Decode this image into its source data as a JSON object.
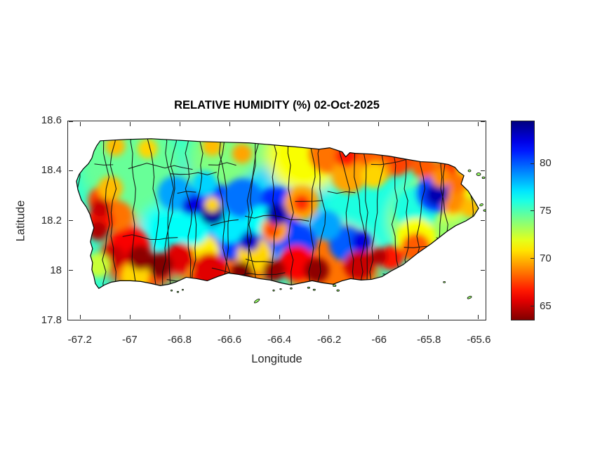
{
  "window": {
    "background": "#ffffff"
  },
  "axis_style": {
    "tick_color": "#262626",
    "text_color": "#262626",
    "title_color": "#000000",
    "boundary_color": "#111111"
  },
  "chart_data": {
    "type": "heatmap",
    "title": "RELATIVE HUMIDITY (%) 02-Oct-2025",
    "xlabel": "Longitude",
    "ylabel": "Latitude",
    "region": "Puerto Rico (municipal boundaries overlaid)",
    "xlim": [
      -67.25,
      -65.57
    ],
    "ylim": [
      17.8,
      18.6
    ],
    "xticks": [
      -67.2,
      -67,
      -66.8,
      -66.6,
      -66.4,
      -66.2,
      -66,
      -65.8,
      -65.6
    ],
    "xtick_labels": [
      "-67.2",
      "-67",
      "-66.8",
      "-66.6",
      "-66.4",
      "-66.2",
      "-66",
      "-65.8",
      "-65.6"
    ],
    "yticks": [
      17.8,
      18,
      18.2,
      18.4,
      18.6
    ],
    "ytick_labels": [
      "17.8",
      "18",
      "18.2",
      "18.4",
      "18.6"
    ],
    "grid": false,
    "legend_position": "colorbar-right",
    "colormap": "jet-reversed (blue = high RH, red = low RH)",
    "colorbar": {
      "vmin": 63.5,
      "vmax": 84.5,
      "ticks": [
        65,
        70,
        75,
        80
      ],
      "tick_labels": [
        "65",
        "70",
        "75",
        "80"
      ]
    },
    "base_rh": 75.6,
    "islet_rh": 73.5,
    "field_format": [
      "longitude",
      "latitude",
      "radius_deg",
      "rh_percent"
    ],
    "field": [
      [
        -67.0,
        18.42,
        0.2,
        74.5
      ],
      [
        -66.55,
        18.44,
        0.22,
        74.0
      ],
      [
        -66.3,
        18.46,
        0.15,
        71.5
      ],
      [
        -66.62,
        18.26,
        0.24,
        77.5
      ],
      [
        -66.38,
        18.24,
        0.2,
        77.5
      ],
      [
        -66.05,
        18.24,
        0.18,
        76.0
      ],
      [
        -66.85,
        18.15,
        0.12,
        76.5
      ],
      [
        -66.9,
        18.32,
        0.14,
        74.5
      ],
      [
        -66.62,
        18.0,
        0.18,
        68.5
      ],
      [
        -66.18,
        18.0,
        0.18,
        68.5
      ],
      [
        -66.95,
        18.07,
        0.16,
        67.5
      ],
      [
        -65.8,
        18.2,
        0.16,
        73.5
      ],
      [
        -65.72,
        18.33,
        0.12,
        71.5
      ],
      [
        -66.6,
        18.19,
        0.08,
        77.0
      ],
      [
        -66.75,
        18.17,
        0.07,
        76.5
      ],
      [
        -66.47,
        18.2,
        0.06,
        76.5
      ],
      [
        -66.68,
        18.245,
        0.11,
        81.0
      ],
      [
        -66.41,
        18.235,
        0.1,
        81.0
      ],
      [
        -66.55,
        18.29,
        0.08,
        79.5
      ],
      [
        -66.82,
        18.31,
        0.07,
        78.5
      ],
      [
        -66.7,
        18.35,
        0.05,
        77.5
      ],
      [
        -66.59,
        18.13,
        0.09,
        80.5
      ],
      [
        -66.46,
        18.12,
        0.08,
        80.0
      ],
      [
        -66.32,
        18.115,
        0.07,
        80.5
      ],
      [
        -66.13,
        18.105,
        0.07,
        80.0
      ],
      [
        -66.21,
        18.18,
        0.06,
        78.5
      ],
      [
        -65.77,
        18.31,
        0.08,
        80.5
      ],
      [
        -66.67,
        18.23,
        0.05,
        84.0
      ],
      [
        -66.41,
        18.225,
        0.045,
        83.5
      ],
      [
        -66.52,
        18.115,
        0.04,
        83.0
      ],
      [
        -66.07,
        18.115,
        0.04,
        82.5
      ],
      [
        -65.765,
        18.305,
        0.045,
        83.5
      ],
      [
        -66.75,
        18.26,
        0.04,
        82.5
      ],
      [
        -66.2,
        18.47,
        0.08,
        68.5
      ],
      [
        -66.05,
        18.465,
        0.08,
        68.0
      ],
      [
        -66.12,
        18.38,
        0.07,
        69.5
      ],
      [
        -66.0,
        18.4,
        0.05,
        69.0
      ],
      [
        -65.93,
        18.45,
        0.07,
        67.5
      ],
      [
        -66.13,
        18.46,
        0.045,
        66.5
      ],
      [
        -65.82,
        18.42,
        0.05,
        68.0
      ],
      [
        -65.73,
        18.4,
        0.045,
        67.0
      ],
      [
        -65.75,
        18.375,
        0.04,
        69.0
      ],
      [
        -65.7,
        18.28,
        0.05,
        69.0
      ],
      [
        -65.63,
        18.25,
        0.04,
        70.0
      ],
      [
        -66.02,
        18.38,
        0.05,
        70.5
      ],
      [
        -66.31,
        18.27,
        0.07,
        69.5
      ],
      [
        -66.31,
        18.27,
        0.035,
        67.0
      ],
      [
        -66.42,
        18.165,
        0.055,
        69.5
      ],
      [
        -66.43,
        18.16,
        0.03,
        67.5
      ],
      [
        -66.67,
        18.265,
        0.03,
        70.5
      ],
      [
        -67.06,
        18.5,
        0.04,
        70.0
      ],
      [
        -66.93,
        18.49,
        0.04,
        70.5
      ],
      [
        -66.67,
        18.5,
        0.04,
        70.0
      ],
      [
        -66.55,
        18.47,
        0.04,
        69.5
      ],
      [
        -67.08,
        18.33,
        0.05,
        70.0
      ],
      [
        -67.11,
        18.28,
        0.06,
        67.5
      ],
      [
        -67.12,
        18.25,
        0.04,
        65.0
      ],
      [
        -67.12,
        18.2,
        0.055,
        66.5
      ],
      [
        -67.13,
        18.16,
        0.04,
        64.5
      ],
      [
        -67.05,
        18.22,
        0.06,
        68.5
      ],
      [
        -67.0,
        18.09,
        0.08,
        66.0
      ],
      [
        -66.96,
        18.05,
        0.05,
        63.8
      ],
      [
        -66.88,
        18.02,
        0.05,
        63.5
      ],
      [
        -67.07,
        18.05,
        0.05,
        65.0
      ],
      [
        -66.8,
        18.05,
        0.06,
        65.5
      ],
      [
        -67.13,
        18.02,
        0.05,
        72.5
      ],
      [
        -66.98,
        17.975,
        0.06,
        70.5
      ],
      [
        -66.68,
        18.0,
        0.07,
        65.5
      ],
      [
        -66.55,
        17.99,
        0.045,
        63.5
      ],
      [
        -66.42,
        18.0,
        0.045,
        64.0
      ],
      [
        -66.33,
        18.03,
        0.07,
        66.0
      ],
      [
        -66.25,
        18.0,
        0.05,
        63.8
      ],
      [
        -66.08,
        18.02,
        0.06,
        65.0
      ],
      [
        -66.0,
        18.055,
        0.035,
        64.5
      ],
      [
        -65.95,
        18.05,
        0.05,
        66.5
      ],
      [
        -65.85,
        18.09,
        0.06,
        68.0
      ],
      [
        -66.72,
        18.07,
        0.08,
        71.0
      ],
      [
        -66.5,
        18.06,
        0.07,
        70.5
      ],
      [
        -65.85,
        18.13,
        0.08,
        71.5
      ],
      [
        -65.85,
        18.25,
        0.09,
        76.0
      ],
      [
        -65.68,
        18.35,
        0.04,
        68.5
      ]
    ]
  }
}
